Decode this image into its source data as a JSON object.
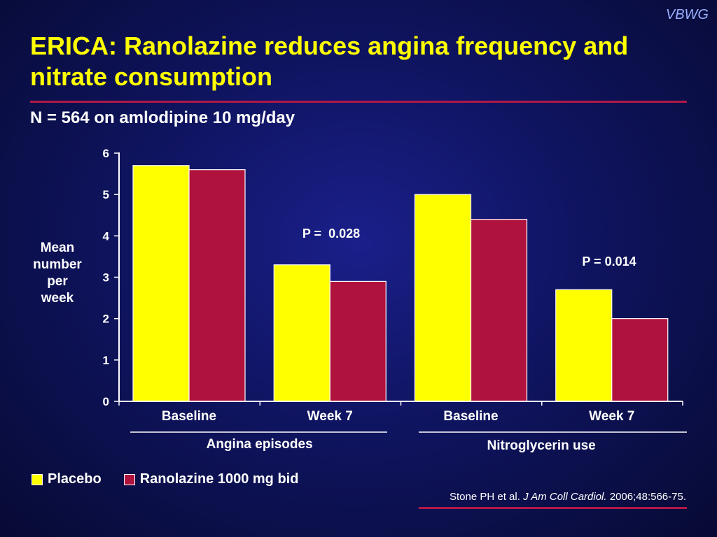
{
  "brand": "VBWG",
  "title": "ERICA: Ranolazine reduces angina frequency and nitrate consumption",
  "subtitle": "N = 564 on amlodipine 10 mg/day",
  "colors": {
    "placebo": "#ffff00",
    "ranolazine": "#b0123e",
    "rule": "#b01848"
  },
  "chart_data": {
    "type": "bar",
    "ylabel": "Mean number per week",
    "ylim": [
      0,
      6
    ],
    "yticks": [
      0,
      1,
      2,
      3,
      4,
      5,
      6
    ],
    "categories": [
      "Baseline",
      "Week 7",
      "Baseline",
      "Week 7"
    ],
    "groups": [
      {
        "label": "Angina episodes",
        "categories": [
          0,
          1
        ]
      },
      {
        "label": "Nitroglycerin use",
        "categories": [
          2,
          3
        ]
      }
    ],
    "series": [
      {
        "name": "Placebo",
        "values": [
          5.7,
          3.3,
          5.0,
          2.7
        ]
      },
      {
        "name": "Ranolazine 1000 mg bid",
        "values": [
          5.6,
          2.9,
          4.4,
          2.0
        ]
      }
    ],
    "annotations": [
      {
        "text": "P =  0.028",
        "category": 1
      },
      {
        "text": "P = 0.014",
        "category": 3
      }
    ],
    "legend": "bottom-left"
  },
  "citation": {
    "authors": "Stone PH et al.",
    "journal": "J Am Coll Cardiol.",
    "details": "2006;48:566-75."
  }
}
